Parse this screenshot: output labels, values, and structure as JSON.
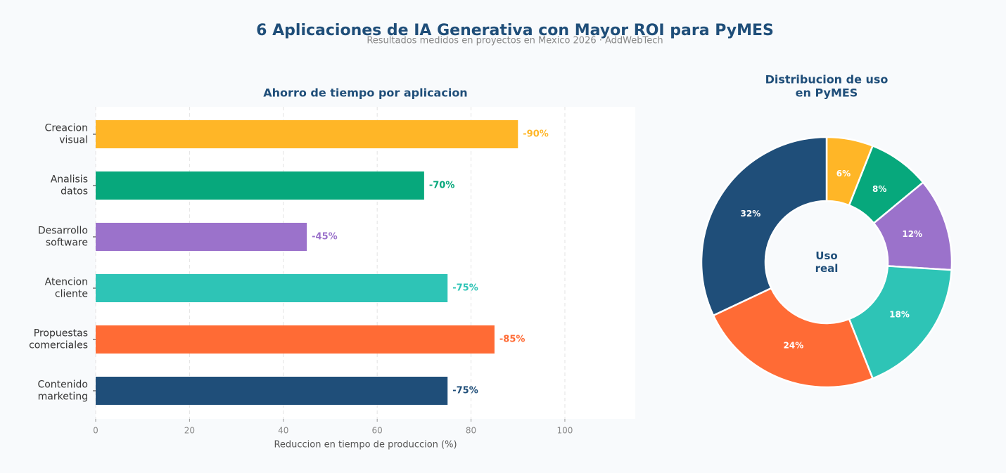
{
  "title": "6 Aplicaciones de IA Generativa con Mayor ROI para PyMES",
  "subtitle": "Resultados medidos en proyectos en Mexico 2026 · AddWebTech",
  "chart_data": [
    {
      "type": "hbar",
      "title": "Ahorro de tiempo por aplicacion",
      "x_label": "Reduccion en tiempo de produccion (%)",
      "categories": [
        "Creacion\nvisual",
        "Analisis\ndatos",
        "Desarrollo\nsoftware",
        "Atencion\ncliente",
        "Propuestas\ncomerciales",
        "Contenido\nmarketing"
      ],
      "values": [
        90,
        70,
        45,
        75,
        85,
        75
      ],
      "value_labels": [
        "-90%",
        "-70%",
        "-45%",
        "-75%",
        "-85%",
        "-75%"
      ],
      "colors": [
        "#ffb627",
        "#07a87c",
        "#9b72cb",
        "#2ec4b6",
        "#ff6b35",
        "#1f4e79"
      ],
      "xlim": [
        0,
        115
      ],
      "xticks": [
        0,
        20,
        40,
        60,
        80,
        100
      ],
      "grid": true
    },
    {
      "type": "donut",
      "title": "Distribucion de uso\nen PyMES",
      "center_label": "Uso\nreal",
      "values": [
        6,
        8,
        12,
        18,
        24,
        32
      ],
      "value_labels": [
        "6%",
        "8%",
        "12%",
        "18%",
        "24%",
        "32%"
      ],
      "colors": [
        "#ffb627",
        "#07a87c",
        "#9b72cb",
        "#2ec4b6",
        "#ff6b35",
        "#1f4e79"
      ]
    }
  ]
}
